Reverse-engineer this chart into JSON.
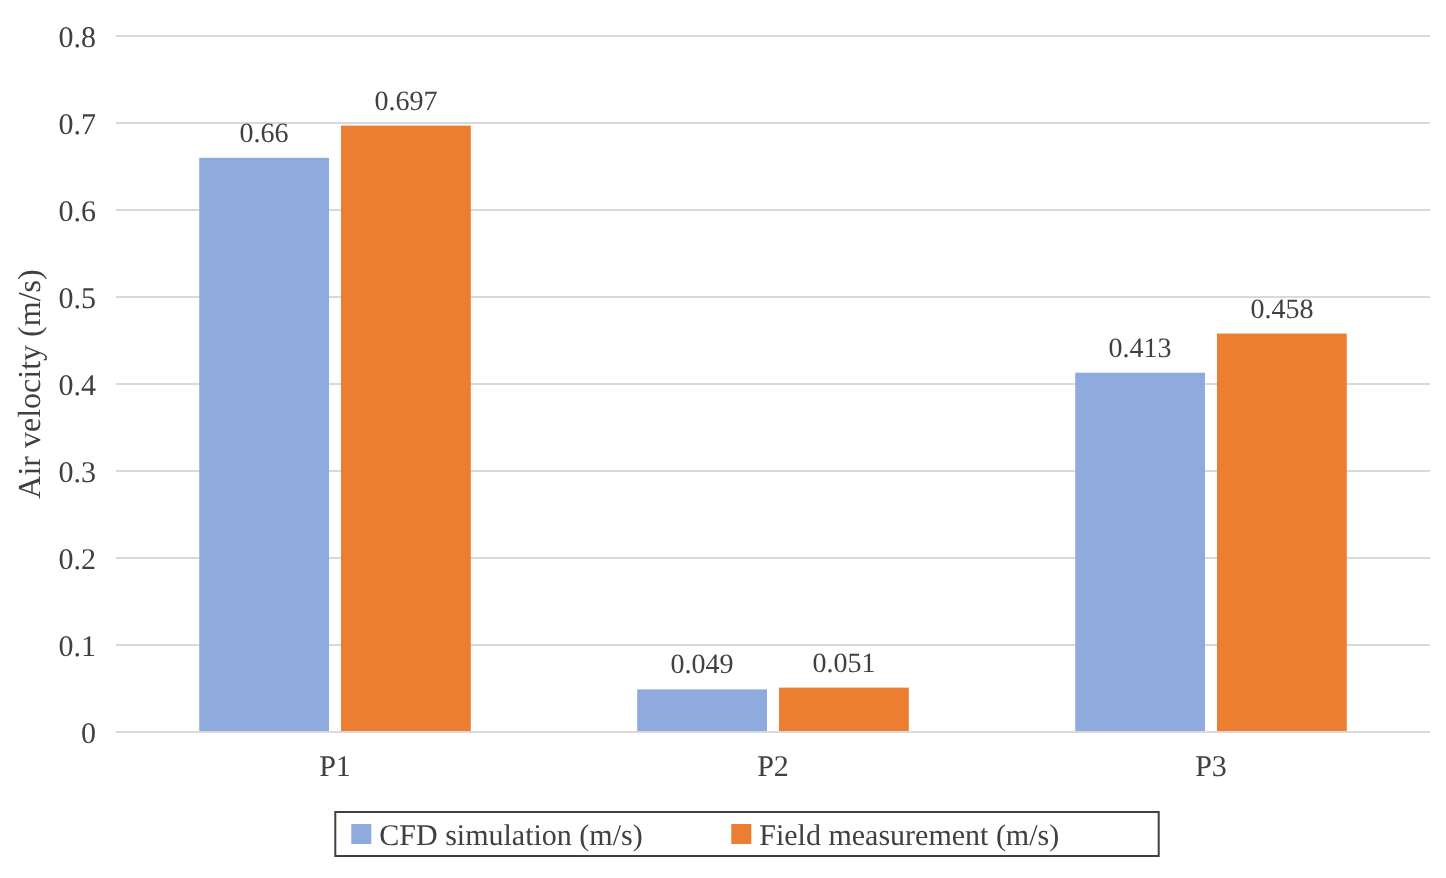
{
  "chart_data": {
    "type": "bar",
    "ylabel": "Air velocity (m/s)",
    "categories": [
      "P1",
      "P2",
      "P3"
    ],
    "series": [
      {
        "name": "CFD simulation (m/s)",
        "color": "#8faadc",
        "values": [
          0.66,
          0.049,
          0.413
        ]
      },
      {
        "name": "Field measurement (m/s)",
        "color": "#ed7d31",
        "values": [
          0.697,
          0.051,
          0.458
        ]
      }
    ],
    "ylim": [
      0,
      0.8
    ],
    "yticks": [
      {
        "value": 0,
        "label": "0"
      },
      {
        "value": 0.1,
        "label": "0.1"
      },
      {
        "value": 0.2,
        "label": "0.2"
      },
      {
        "value": 0.3,
        "label": "0.3"
      },
      {
        "value": 0.4,
        "label": "0.4"
      },
      {
        "value": 0.5,
        "label": "0.5"
      },
      {
        "value": 0.6,
        "label": "0.6"
      },
      {
        "value": 0.7,
        "label": "0.7"
      },
      {
        "value": 0.8,
        "label": "0.8"
      }
    ],
    "grid": "y",
    "legend": "bottom",
    "data_labels": true
  }
}
